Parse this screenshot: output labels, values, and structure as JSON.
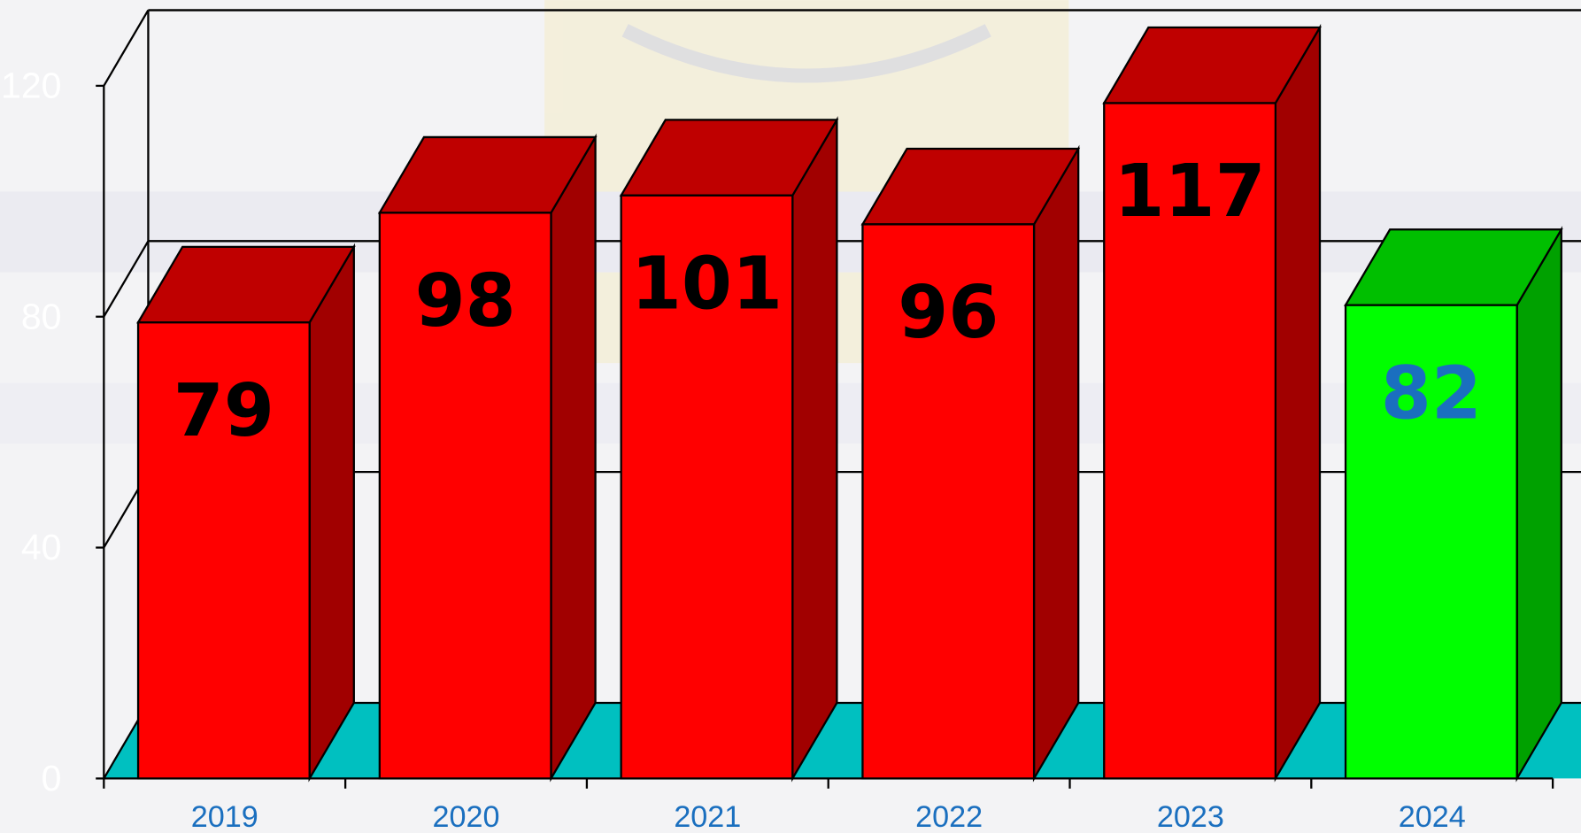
{
  "chart_data": {
    "type": "bar3d",
    "categories": [
      "2019",
      "2020",
      "2021",
      "2022",
      "2023",
      "2024"
    ],
    "values": [
      79,
      98,
      101,
      96,
      117,
      82
    ],
    "colors": [
      "#ff0000",
      "#ff0000",
      "#ff0000",
      "#ff0000",
      "#ff0000",
      "#00ff00"
    ],
    "value_label_colors": [
      "#000000",
      "#000000",
      "#000000",
      "#000000",
      "#000000",
      "#1a6fbf"
    ],
    "floor_color": "#00c0c0",
    "ylim": [
      0,
      120
    ],
    "yticks": [
      0,
      40,
      80,
      120
    ],
    "grid": true
  }
}
